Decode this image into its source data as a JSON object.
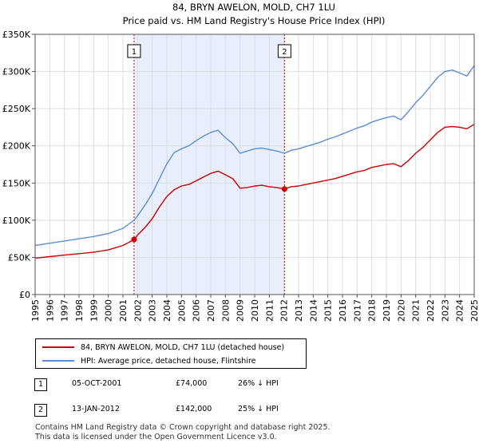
{
  "chart_data": {
    "type": "line",
    "title": "84, BRYN AWELON, MOLD, CH7 1LU",
    "subtitle": "Price paid vs. HM Land Registry's House Price Index (HPI)",
    "xlabel": "",
    "ylabel": "",
    "xlim": [
      1995,
      2025
    ],
    "ylim": [
      0,
      350000
    ],
    "y_ticks": [
      0,
      50000,
      100000,
      150000,
      200000,
      250000,
      300000,
      350000
    ],
    "y_tick_labels": [
      "£0",
      "£50K",
      "£100K",
      "£150K",
      "£200K",
      "£250K",
      "£300K",
      "£350K"
    ],
    "x_ticks": [
      1995,
      1996,
      1997,
      1998,
      1999,
      2000,
      2001,
      2002,
      2003,
      2004,
      2005,
      2006,
      2007,
      2008,
      2009,
      2010,
      2011,
      2012,
      2013,
      2014,
      2015,
      2016,
      2017,
      2018,
      2019,
      2020,
      2021,
      2022,
      2023,
      2024,
      2025
    ],
    "x_tick_labels": [
      "1995",
      "1996",
      "1997",
      "1998",
      "1999",
      "2000",
      "2001",
      "2002",
      "2003",
      "2004",
      "2005",
      "2006",
      "2007",
      "2008",
      "2009",
      "2010",
      "2011",
      "2012",
      "2013",
      "2014",
      "2015",
      "2016",
      "2017",
      "2018",
      "2019",
      "2020",
      "2021",
      "2022",
      "2023",
      "2024",
      "2025"
    ],
    "grid": true,
    "shaded_period": [
      2001.76,
      2012.04
    ],
    "series": [
      {
        "name": "84, BRYN AWELON, MOLD, CH7 1LU (detached house)",
        "color": "#cc0000",
        "x": [
          1995,
          1996,
          1997,
          1998,
          1999,
          2000,
          2001,
          2001.76,
          2002,
          2002.5,
          2003,
          2003.5,
          2004,
          2004.5,
          2005,
          2005.5,
          2006,
          2006.5,
          2007,
          2007.5,
          2008,
          2008.5,
          2009,
          2009.5,
          2010,
          2010.5,
          2011,
          2011.5,
          2012.04,
          2012.5,
          2013,
          2013.5,
          2014,
          2014.5,
          2015,
          2015.5,
          2016,
          2016.5,
          2017,
          2017.5,
          2018,
          2018.5,
          2019,
          2019.5,
          2020,
          2020.5,
          2021,
          2021.5,
          2022,
          2022.5,
          2023,
          2023.5,
          2024,
          2024.5,
          2025
        ],
        "values": [
          49000,
          51000,
          53000,
          55000,
          57000,
          60000,
          66000,
          74000,
          80000,
          90000,
          102000,
          118000,
          132000,
          141000,
          146000,
          148000,
          153000,
          158000,
          163000,
          166000,
          161000,
          156000,
          143000,
          144000,
          146000,
          147000,
          145000,
          144000,
          142000,
          145000,
          146000,
          148000,
          150000,
          152000,
          154000,
          156000,
          159000,
          162000,
          165000,
          167000,
          171000,
          173000,
          175000,
          176000,
          172000,
          180000,
          190000,
          198000,
          208000,
          218000,
          225000,
          226000,
          225000,
          223000,
          229000
        ]
      },
      {
        "name": "HPI: Average price, detached house, Flintshire",
        "color": "#5b8fd1",
        "x": [
          1995,
          1996,
          1997,
          1998,
          1999,
          2000,
          2001,
          2001.76,
          2002,
          2002.5,
          2003,
          2003.5,
          2004,
          2004.5,
          2005,
          2005.5,
          2006,
          2006.5,
          2007,
          2007.5,
          2008,
          2008.5,
          2009,
          2009.5,
          2010,
          2010.5,
          2011,
          2011.5,
          2012.04,
          2012.5,
          2013,
          2013.5,
          2014,
          2014.5,
          2015,
          2015.5,
          2016,
          2016.5,
          2017,
          2017.5,
          2018,
          2018.5,
          2019,
          2019.5,
          2020,
          2020.5,
          2021,
          2021.5,
          2022,
          2022.5,
          2023,
          2023.5,
          2024,
          2024.5,
          2025
        ],
        "values": [
          66000,
          69000,
          72000,
          75000,
          78000,
          82000,
          89000,
          100000,
          106000,
          120000,
          136000,
          156000,
          176000,
          191000,
          196000,
          200000,
          207000,
          213000,
          218000,
          221000,
          211000,
          203000,
          190000,
          193000,
          196000,
          197000,
          195000,
          193000,
          190000,
          194000,
          196000,
          199000,
          202000,
          205000,
          209000,
          212000,
          216000,
          220000,
          224000,
          227000,
          232000,
          235000,
          238000,
          240000,
          235000,
          246000,
          258000,
          268000,
          280000,
          292000,
          300000,
          302000,
          298000,
          294000,
          308000
        ]
      }
    ],
    "sale_points": [
      {
        "label": "1",
        "x": 2001.76,
        "value": 74000
      },
      {
        "label": "2",
        "x": 2012.04,
        "value": 142000
      }
    ]
  },
  "legend": {
    "series1": "84, BRYN AWELON, MOLD, CH7 1LU (detached house)",
    "series2": "HPI: Average price, detached house, Flintshire"
  },
  "sales": [
    {
      "num": "1",
      "date": "05-OCT-2001",
      "price": "£74,000",
      "hpi": "26% ↓ HPI"
    },
    {
      "num": "2",
      "date": "13-JAN-2012",
      "price": "£142,000",
      "hpi": "25% ↓ HPI"
    }
  ],
  "footer": {
    "line1": "Contains HM Land Registry data © Crown copyright and database right 2025.",
    "line2": "This data is licensed under the Open Government Licence v3.0."
  },
  "colors": {
    "property": "#cc0000",
    "hpi": "#5b8fd1",
    "shade": "#e8eefc",
    "grid": "#dddddd"
  }
}
